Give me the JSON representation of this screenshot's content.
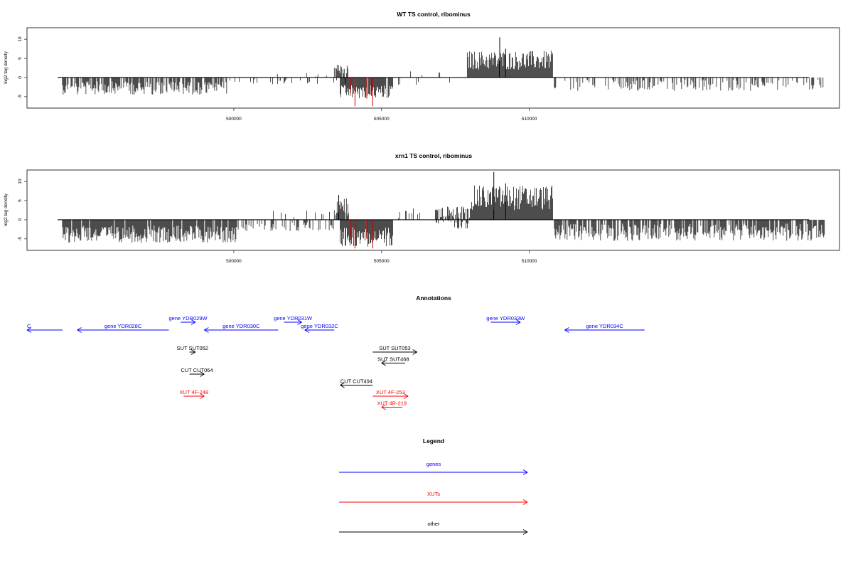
{
  "chart_data": [
    {
      "type": "bar",
      "title": "WT TS control, ribominus",
      "xlabel": "",
      "ylabel": "log2 tag density",
      "xlim": [
        493000,
        520500
      ],
      "ylim": [
        -8,
        13
      ],
      "yticks": [
        -5,
        0,
        5,
        10
      ],
      "xticks": [
        500000,
        505000,
        510000
      ],
      "xtick_labels": [
        "500000",
        "505000",
        "510000"
      ],
      "segments": [
        {
          "from": 494200,
          "to": 499800,
          "sign": -1,
          "min": 1.0,
          "max": 4.5,
          "density": 0.75
        },
        {
          "from": 499800,
          "to": 504200,
          "sign": -1,
          "min": 0.3,
          "max": 1.8,
          "density": 0.15
        },
        {
          "from": 500800,
          "to": 503500,
          "sign": 1,
          "min": 0.3,
          "max": 1.2,
          "density": 0.06
        },
        {
          "from": 503400,
          "to": 503900,
          "sign": 1,
          "min": 1.0,
          "max": 3.5,
          "density": 0.7
        },
        {
          "from": 503600,
          "to": 505400,
          "sign": -1,
          "min": 2.0,
          "max": 5.5,
          "density": 0.95
        },
        {
          "from": 505600,
          "to": 507900,
          "sign": 1,
          "min": 0.3,
          "max": 2.0,
          "density": 0.05
        },
        {
          "from": 505500,
          "to": 508000,
          "sign": -1,
          "min": 0.3,
          "max": 2.0,
          "density": 0.06
        },
        {
          "from": 507900,
          "to": 510800,
          "sign": 1,
          "min": 2.0,
          "max": 7.0,
          "density": 1.0
        },
        {
          "from": 510800,
          "to": 520000,
          "sign": -1,
          "min": 0.5,
          "max": 3.5,
          "density": 0.35
        }
      ],
      "spikes": [
        {
          "x": 509000,
          "y": 10.5,
          "color": "#000000"
        },
        {
          "x": 509200,
          "y": 7.5,
          "color": "#000000"
        },
        {
          "x": 504100,
          "y": -7.5,
          "color": "#cc0000"
        },
        {
          "x": 504500,
          "y": -5.5,
          "color": "#cc0000"
        },
        {
          "x": 504650,
          "y": -4.5,
          "color": "#cc0000"
        },
        {
          "x": 504700,
          "y": -7.5,
          "color": "#cc0000"
        },
        {
          "x": 503950,
          "y": -4.0,
          "color": "#cc0000"
        }
      ]
    },
    {
      "type": "bar",
      "title": "xrn1 TS control, ribominus",
      "xlabel": "",
      "ylabel": "log2 tag density",
      "xlim": [
        493000,
        520500
      ],
      "ylim": [
        -8,
        13
      ],
      "yticks": [
        -5,
        0,
        5,
        10
      ],
      "xticks": [
        500000,
        505000,
        510000
      ],
      "xtick_labels": [
        "500000",
        "505000",
        "510000"
      ],
      "segments": [
        {
          "from": 494200,
          "to": 500100,
          "sign": -1,
          "min": 1.5,
          "max": 6.0,
          "density": 0.95
        },
        {
          "from": 500100,
          "to": 503400,
          "sign": -1,
          "min": 0.5,
          "max": 3.0,
          "density": 0.35
        },
        {
          "from": 501000,
          "to": 503300,
          "sign": 1,
          "min": 0.5,
          "max": 2.5,
          "density": 0.12
        },
        {
          "from": 503400,
          "to": 503900,
          "sign": 1,
          "min": 1.0,
          "max": 6.0,
          "density": 0.8
        },
        {
          "from": 503600,
          "to": 505400,
          "sign": -1,
          "min": 2.0,
          "max": 7.0,
          "density": 1.0
        },
        {
          "from": 505500,
          "to": 506800,
          "sign": 1,
          "min": 0.3,
          "max": 3.0,
          "density": 0.15
        },
        {
          "from": 506800,
          "to": 508000,
          "sign": 1,
          "min": 0.5,
          "max": 3.5,
          "density": 0.6
        },
        {
          "from": 506800,
          "to": 508000,
          "sign": -1,
          "min": 0.3,
          "max": 2.5,
          "density": 0.3
        },
        {
          "from": 508000,
          "to": 510800,
          "sign": 1,
          "min": 2.5,
          "max": 9.0,
          "density": 1.0
        },
        {
          "from": 510800,
          "to": 520000,
          "sign": -1,
          "min": 1.0,
          "max": 5.5,
          "density": 0.8
        }
      ],
      "spikes": [
        {
          "x": 508800,
          "y": 12.5,
          "color": "#000000"
        },
        {
          "x": 509200,
          "y": 9.5,
          "color": "#000000"
        },
        {
          "x": 503550,
          "y": 6.5,
          "color": "#000000"
        },
        {
          "x": 504100,
          "y": -7.5,
          "color": "#cc0000"
        },
        {
          "x": 504500,
          "y": -5.0,
          "color": "#cc0000"
        },
        {
          "x": 504700,
          "y": -7.5,
          "color": "#cc0000"
        },
        {
          "x": 503950,
          "y": -4.5,
          "color": "#cc0000"
        }
      ]
    }
  ],
  "annotations": {
    "title": "Annotations",
    "features": [
      {
        "label": "C",
        "start": 493000,
        "end": 494200,
        "strand": "-",
        "kind": "gene",
        "row": 0,
        "label_pos": "left"
      },
      {
        "label": "gene YDR028C",
        "start": 494700,
        "end": 497800,
        "strand": "-",
        "kind": "gene",
        "row": 0
      },
      {
        "label": "gene YDR029W",
        "start": 498200,
        "end": 498700,
        "strand": "+",
        "kind": "gene",
        "row": -1
      },
      {
        "label": "gene YDR030C",
        "start": 499000,
        "end": 501500,
        "strand": "-",
        "kind": "gene",
        "row": 0
      },
      {
        "label": "gene YDR031W",
        "start": 501700,
        "end": 502300,
        "strand": "+",
        "kind": "gene",
        "row": -1
      },
      {
        "label": "gene YDR032C",
        "start": 502400,
        "end": 503400,
        "strand": "-",
        "kind": "gene",
        "row": 0
      },
      {
        "label": "gene YDR033W",
        "start": 508700,
        "end": 509700,
        "strand": "+",
        "kind": "gene",
        "row": -1
      },
      {
        "label": "gene YDR034C",
        "start": 511200,
        "end": 513900,
        "strand": "-",
        "kind": "gene",
        "row": 0
      },
      {
        "label": "SUT SUT052",
        "start": 498500,
        "end": 498700,
        "strand": "+",
        "kind": "other",
        "row": 1
      },
      {
        "label": "CUT CUT064",
        "start": 498500,
        "end": 499000,
        "strand": "+",
        "kind": "other",
        "row": 2
      },
      {
        "label": "XUT 4F-248",
        "start": 498300,
        "end": 499000,
        "strand": "+",
        "kind": "xut",
        "row": 3
      },
      {
        "label": "CUT CUT494",
        "start": 503600,
        "end": 504700,
        "strand": "-",
        "kind": "other",
        "row": 2.5
      },
      {
        "label": "SUT SUT053",
        "start": 504700,
        "end": 506200,
        "strand": "+",
        "kind": "other",
        "row": 1
      },
      {
        "label": "SUT SUT468",
        "start": 505000,
        "end": 505800,
        "strand": "-",
        "kind": "other",
        "row": 1.5
      },
      {
        "label": "XUT 4F-253",
        "start": 504700,
        "end": 505900,
        "strand": "+",
        "kind": "xut",
        "row": 3
      },
      {
        "label": "XUT 4R-219",
        "start": 505000,
        "end": 505700,
        "strand": "-",
        "kind": "xut",
        "row": 3.5
      }
    ]
  },
  "legend": {
    "title": "Legend",
    "items": [
      {
        "label": "genes",
        "color": "#0000ff"
      },
      {
        "label": "XUTs",
        "color": "#ff0000"
      },
      {
        "label": "other",
        "color": "#000000"
      }
    ]
  },
  "colors": {
    "gene": "#0000ff",
    "xut": "#ff0000",
    "other": "#000000",
    "highlight": "#cc0000"
  }
}
